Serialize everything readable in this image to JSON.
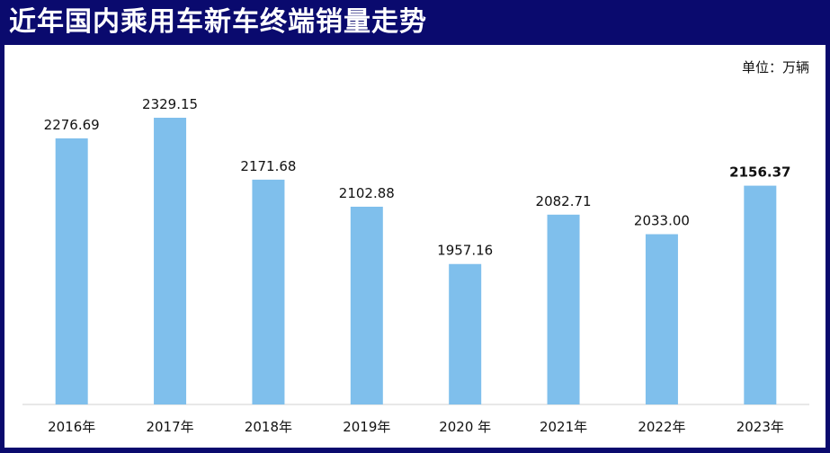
{
  "title": "近年国内乘用车新车终端销量走势",
  "unit_label": "单位：万辆",
  "colors": {
    "bar": "#7fbfec",
    "frame": "#0a0a6e",
    "axis": "#d0d0d0"
  },
  "chart_data": {
    "type": "bar",
    "categories": [
      "2016年",
      "2017年",
      "2018年",
      "2019年",
      "2020 年",
      "2021年",
      "2022年",
      "2023年"
    ],
    "values": [
      2276.69,
      2329.15,
      2171.68,
      2102.88,
      1957.16,
      2082.71,
      2033.0,
      2156.37
    ],
    "value_labels": [
      "2276.69",
      "2329.15",
      "2171.68",
      "2102.88",
      "1957.16",
      "2082.71",
      "2033.00",
      "2156.37"
    ],
    "highlight_index": 7,
    "ylim": [
      1600,
      2400
    ],
    "grid": false,
    "legend": "none"
  }
}
